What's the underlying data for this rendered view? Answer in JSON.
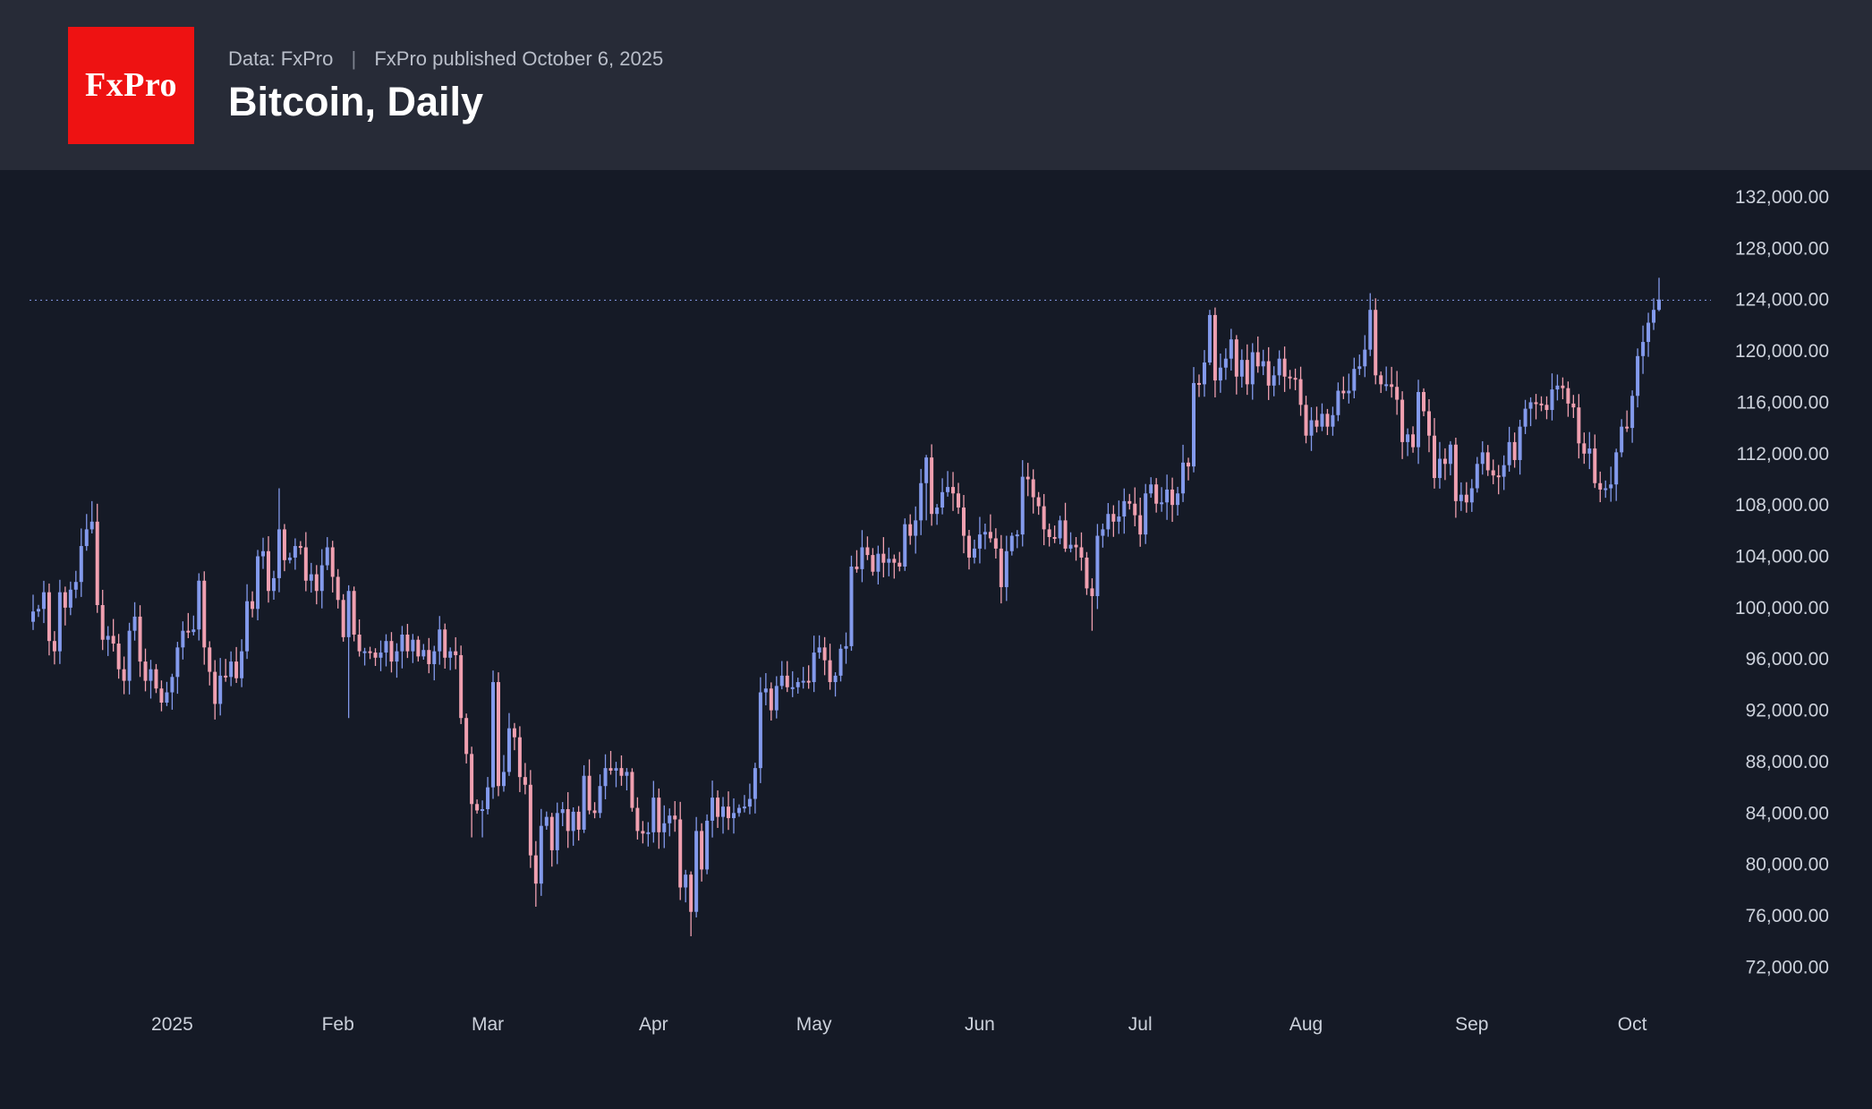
{
  "header": {
    "logo_text": "FxPro",
    "source_prefix": "Data: FxPro",
    "separator": "|",
    "published_text": "FxPro published October 6, 2025",
    "title": "Bitcoin, Daily"
  },
  "chart_data": {
    "type": "candlestick",
    "title": "Bitcoin, Daily",
    "legend": "none",
    "grid": "off",
    "y_axis": {
      "side": "right",
      "tick_format": "#,##0.00",
      "ticks": [
        132000,
        128000,
        124000,
        120000,
        116000,
        112000,
        108000,
        104000,
        100000,
        96000,
        92000,
        88000,
        84000,
        80000,
        76000,
        72000
      ]
    },
    "x_axis": {
      "labels": [
        {
          "label": "2025",
          "i": 26
        },
        {
          "label": "Feb",
          "i": 57
        },
        {
          "label": "Mar",
          "i": 85
        },
        {
          "label": "Apr",
          "i": 116
        },
        {
          "label": "May",
          "i": 146
        },
        {
          "label": "Jun",
          "i": 177
        },
        {
          "label": "Jul",
          "i": 207
        },
        {
          "label": "Aug",
          "i": 238
        },
        {
          "label": "Sep",
          "i": 269
        },
        {
          "label": "Oct",
          "i": 299
        }
      ]
    },
    "price_unit_usd": 1000,
    "dotted_price_line_k": 123.95,
    "open_first_k": 98.9,
    "closes_k": [
      99.7,
      99.9,
      101.2,
      97.4,
      96.6,
      101.2,
      100.0,
      101.4,
      102.0,
      104.8,
      106.1,
      106.7,
      100.2,
      97.5,
      97.8,
      97.2,
      95.2,
      94.3,
      98.2,
      99.3,
      95.8,
      94.3,
      95.2,
      93.7,
      92.6,
      93.4,
      94.6,
      96.9,
      98.2,
      98.1,
      98.3,
      102.1,
      96.9,
      95.0,
      92.5,
      94.7,
      94.6,
      95.8,
      94.5,
      96.6,
      100.5,
      99.9,
      104.0,
      104.4,
      101.3,
      102.3,
      106.1,
      103.7,
      103.9,
      104.8,
      104.7,
      102.1,
      102.6,
      101.3,
      103.3,
      104.7,
      102.4,
      100.6,
      97.7,
      101.3,
      97.9,
      96.6,
      96.6,
      96.5,
      96.1,
      96.5,
      97.4,
      95.8,
      96.6,
      97.9,
      96.6,
      97.5,
      96.2,
      96.7,
      95.6,
      96.6,
      98.3,
      96.1,
      96.6,
      96.3,
      91.4,
      88.6,
      84.7,
      84.2,
      84.3,
      86.0,
      94.2,
      86.1,
      87.2,
      90.6,
      89.9,
      86.8,
      86.2,
      80.7,
      78.5,
      83.0,
      83.7,
      81.1,
      84.0,
      84.3,
      82.6,
      84.1,
      82.7,
      86.9,
      84.2,
      84.0,
      86.1,
      87.5,
      87.3,
      87.5,
      86.9,
      87.2,
      84.4,
      82.6,
      82.4,
      82.5,
      85.2,
      82.5,
      83.2,
      83.8,
      83.5,
      78.2,
      79.2,
      76.3,
      82.6,
      79.6,
      83.4,
      85.2,
      83.7,
      84.5,
      83.6,
      84.0,
      84.4,
      84.5,
      85.1,
      87.5,
      93.4,
      93.7,
      92.0,
      93.9,
      94.7,
      93.8,
      93.8,
      94.2,
      94.3,
      94.2,
      96.5,
      96.9,
      95.9,
      94.2,
      94.7,
      96.8,
      97.0,
      103.2,
      103.0,
      104.7,
      104.1,
      102.8,
      104.2,
      103.5,
      103.8,
      103.5,
      103.2,
      106.5,
      105.6,
      106.8,
      109.7,
      111.7,
      107.3,
      107.8,
      109.0,
      109.4,
      108.9,
      107.8,
      105.6,
      103.9,
      104.6,
      105.7,
      105.9,
      105.4,
      104.6,
      101.6,
      104.4,
      105.6,
      105.7,
      110.2,
      110.0,
      108.6,
      107.9,
      106.1,
      105.5,
      105.4,
      106.8,
      104.6,
      104.9,
      104.7,
      103.9,
      101.5,
      100.9,
      105.6,
      106.1,
      107.3,
      106.7,
      107.1,
      108.3,
      108.1,
      107.2,
      105.7,
      108.9,
      109.6,
      108.1,
      108.2,
      109.2,
      108.0,
      108.9,
      111.3,
      111.0,
      117.5,
      117.4,
      119.1,
      122.8,
      117.7,
      118.7,
      119.4,
      120.9,
      118.0,
      119.3,
      117.4,
      119.9,
      118.8,
      119.2,
      117.3,
      118.1,
      119.4,
      118.0,
      117.9,
      117.8,
      115.8,
      113.4,
      114.6,
      114.1,
      115.1,
      114.1,
      115.0,
      116.9,
      116.7,
      116.9,
      118.6,
      118.8,
      120.1,
      123.2,
      118.1,
      117.4,
      117.4,
      117.2,
      116.2,
      112.9,
      113.5,
      112.5,
      116.8,
      115.3,
      113.4,
      110.1,
      111.6,
      111.2,
      112.7,
      108.3,
      108.8,
      108.2,
      109.3,
      111.2,
      112.1,
      110.7,
      110.3,
      110.2,
      111.1,
      112.9,
      111.5,
      114.1,
      115.5,
      116.0,
      115.9,
      115.8,
      115.4,
      117.0,
      117.3,
      117.1,
      115.9,
      115.6,
      112.8,
      112.0,
      112.4,
      109.7,
      109.2,
      109.3,
      109.6,
      112.1,
      114.1,
      114.0,
      116.5,
      119.6,
      120.7,
      122.2,
      123.2,
      124.0
    ],
    "wick_overrides": {
      "11": [
        null,
        108.3
      ],
      "46": [
        101.2,
        109.3
      ],
      "59": [
        91.4,
        null
      ],
      "82": [
        82.1,
        null
      ],
      "84": [
        82.1,
        null
      ],
      "86": [
        85.1,
        95.1
      ],
      "94": [
        76.7,
        null
      ],
      "123": [
        74.4,
        null
      ],
      "167": [
        106.8,
        111.9
      ],
      "198": [
        98.2,
        null
      ],
      "220": [
        118.9,
        123.2
      ],
      "250": [
        119.6,
        124.5
      ],
      "251": [
        117.4,
        124.1
      ],
      "304": [
        123.1,
        125.7
      ]
    },
    "colors": {
      "up": "#839aec",
      "down": "#f0a0b0",
      "price_line": "#8a9fee",
      "background": "#151a26",
      "header_background": "#272b37",
      "logo_red": "#ee1212",
      "axis_text": "#ccd1db"
    }
  }
}
